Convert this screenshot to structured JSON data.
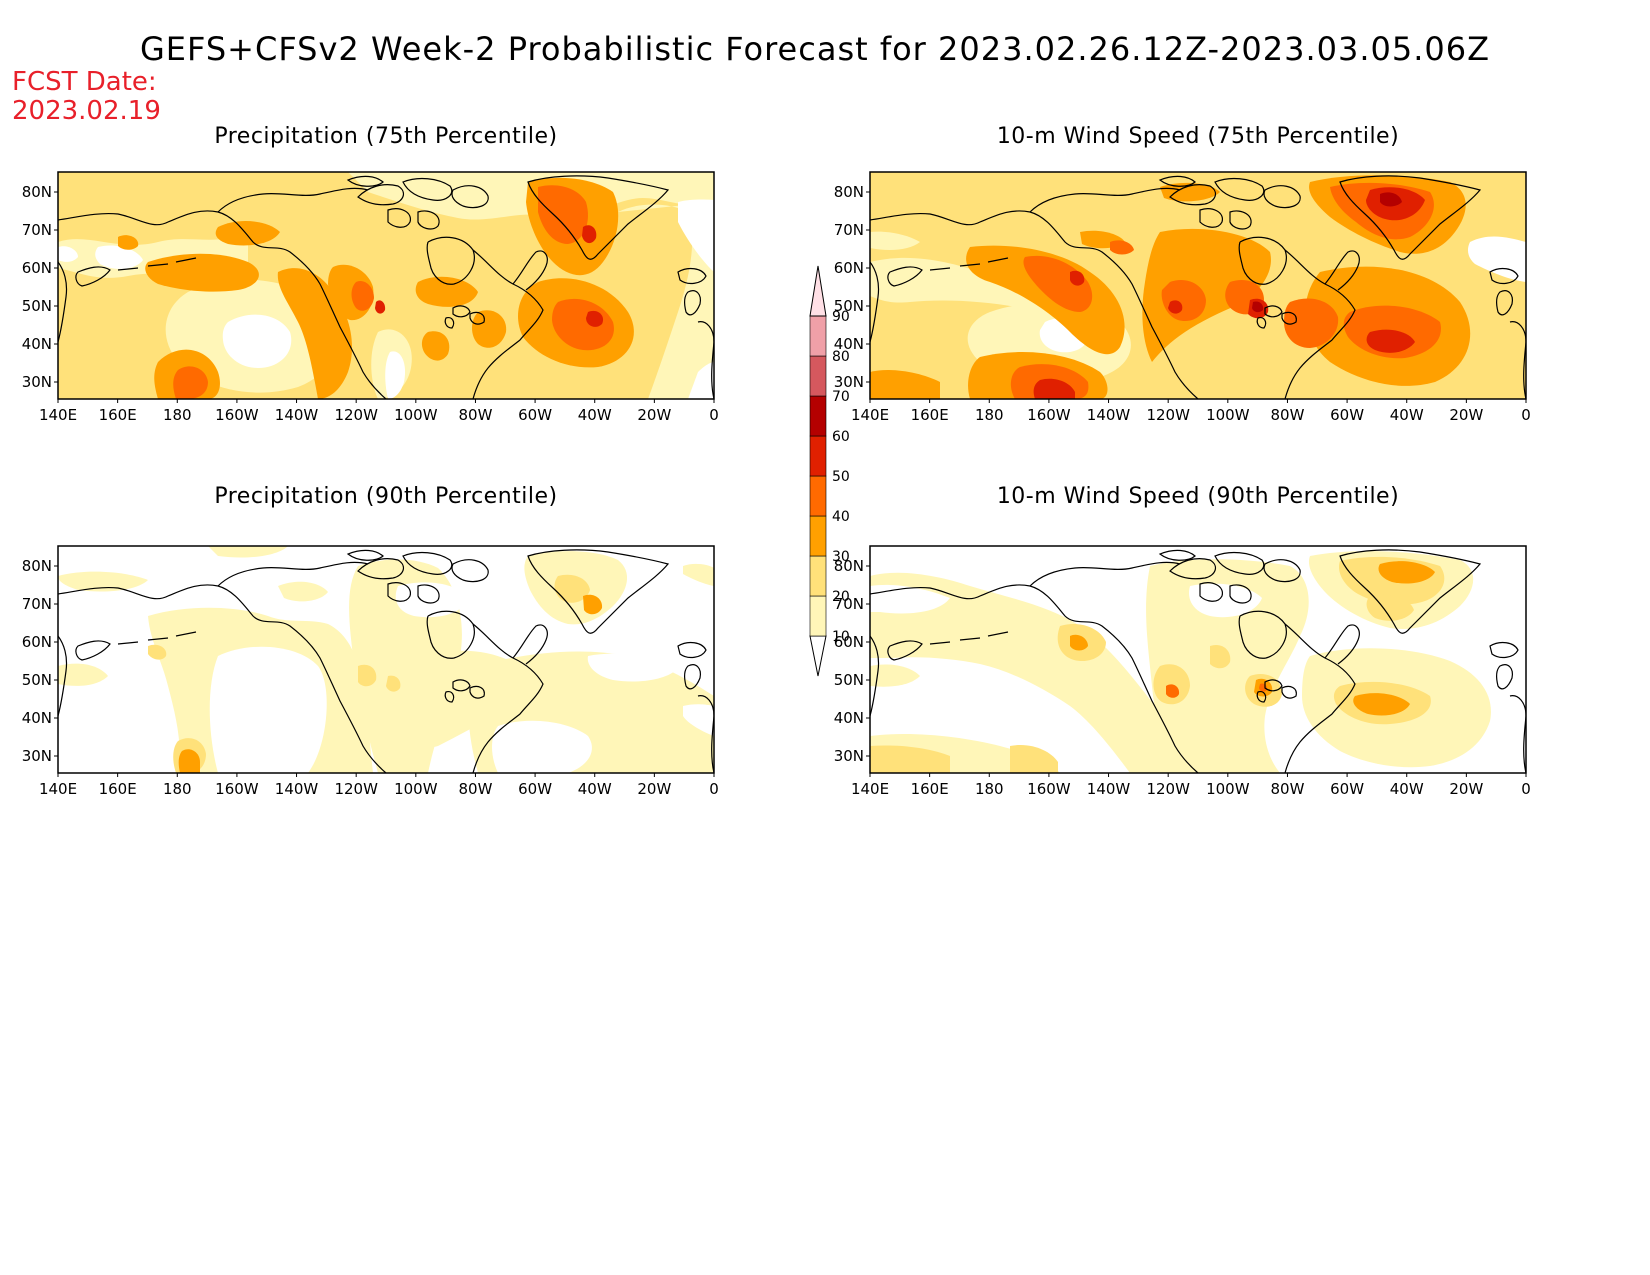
{
  "title": "GEFS+CFSv2 Week-2 Probabilistic Forecast for 2023.02.26.12Z-2023.03.05.06Z",
  "fcst_date_label": "FCST Date:",
  "fcst_date_value": "2023.02.19",
  "palette": {
    "white": "#ffffff",
    "c10": "#fff6b8",
    "c20": "#ffe17a",
    "c30": "#ffa000",
    "c40": "#ff6a00",
    "c50": "#e02000",
    "c60": "#b40000",
    "c70": "#d5585e",
    "c80": "#f0a0a8",
    "c90": "#ffe0e6"
  },
  "colorbar": {
    "levels": [
      "10",
      "20",
      "30",
      "40",
      "50",
      "60",
      "70",
      "80",
      "90"
    ]
  },
  "lat_labels": [
    "80N",
    "70N",
    "60N",
    "50N",
    "40N",
    "30N"
  ],
  "lon_labels": [
    "140E",
    "160E",
    "180",
    "160W",
    "140W",
    "120W",
    "100W",
    "80W",
    "60W",
    "40W",
    "20W",
    "0"
  ],
  "panels": [
    {
      "id": "precip75",
      "title": "Precipitation (75th Percentile)"
    },
    {
      "id": "wind75",
      "title": "10-m Wind Speed (75th Percentile)"
    },
    {
      "id": "precip90",
      "title": "Precipitation (90th Percentile)"
    },
    {
      "id": "wind90",
      "title": "10-m Wind Speed (90th Percentile)"
    }
  ]
}
